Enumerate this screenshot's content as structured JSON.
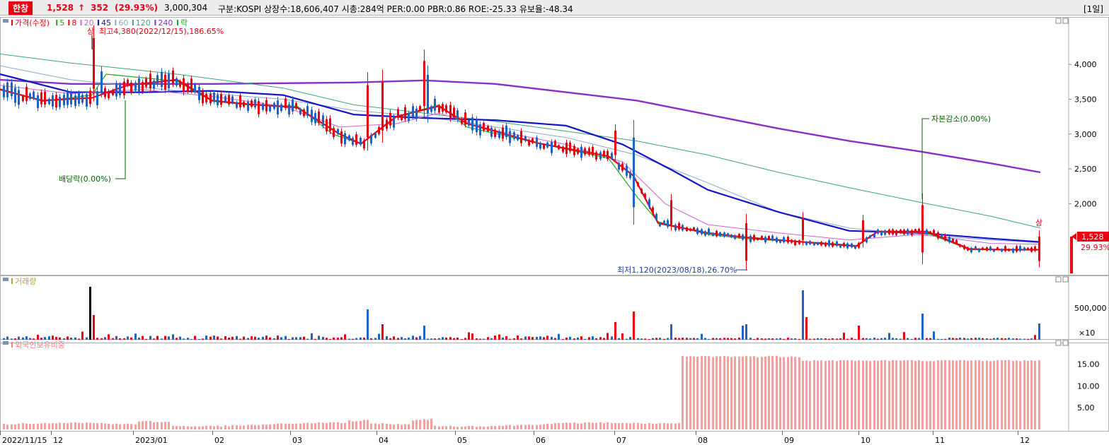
{
  "header": {
    "stock_name": "한창",
    "price": "1,528",
    "change_arrow": "↑",
    "change": "352",
    "change_pct": "(29.93%)",
    "volume": "3,000,304",
    "info": "구분:KOSPI  상장수:18,606,407  시총:284억  PER:0.00  PBR:0.86  ROE:-25.33  유보율:-48.34",
    "period": "[1일]"
  },
  "colors": {
    "up": "#e60012",
    "down": "#1f63c6",
    "ma5": "#1fa51f",
    "ma8": "#e60012",
    "ma20": "#d460d4",
    "ma45": "#1414c8",
    "ma60": "#8aa8cc",
    "ma120": "#3aa57a",
    "ma240": "#8a2fc8"
  },
  "chart_data": [
    {
      "type": "candlestick",
      "legend": [
        "가격(수정)",
        "5",
        "8",
        "20",
        "45",
        "60",
        "120",
        "240",
        "락"
      ],
      "yticks": [
        "4,000",
        "3,500",
        "3,000",
        "2,500",
        "2,000"
      ],
      "ylim": [
        1000,
        4600
      ],
      "last_price_label": "1,528",
      "last_change_label": "29.93%",
      "annotations": {
        "high": "최고4,380(2022/12/15),186.65%",
        "low": "최저1,120(2023/08/18),26.70%",
        "dividend": "배당락(0.00%)",
        "capital_reduction": "자본감소(0.00%)",
        "up_limit": "상"
      },
      "moving_averages": {
        "ma240": [
          [
            0,
            3780
          ],
          [
            100,
            3720
          ],
          [
            300,
            3720
          ],
          [
            500,
            3740
          ],
          [
            600,
            3770
          ],
          [
            700,
            3720
          ],
          [
            800,
            3600
          ],
          [
            900,
            3480
          ],
          [
            1000,
            3280
          ],
          [
            1100,
            3080
          ],
          [
            1200,
            2900
          ],
          [
            1300,
            2750
          ],
          [
            1400,
            2580
          ],
          [
            1470,
            2450
          ]
        ],
        "ma120": [
          [
            0,
            4150
          ],
          [
            100,
            4020
          ],
          [
            250,
            3860
          ],
          [
            400,
            3660
          ],
          [
            500,
            3420
          ],
          [
            600,
            3300
          ],
          [
            700,
            3180
          ],
          [
            800,
            3040
          ],
          [
            900,
            2900
          ],
          [
            1000,
            2700
          ],
          [
            1100,
            2450
          ],
          [
            1200,
            2230
          ],
          [
            1300,
            2020
          ],
          [
            1400,
            1820
          ],
          [
            1470,
            1650
          ]
        ],
        "ma60": [
          [
            0,
            3980
          ],
          [
            100,
            3780
          ],
          [
            250,
            3620
          ],
          [
            400,
            3500
          ],
          [
            500,
            3340
          ],
          [
            600,
            3250
          ],
          [
            700,
            3100
          ],
          [
            800,
            2950
          ],
          [
            900,
            2700
          ],
          [
            1000,
            2300
          ],
          [
            1100,
            1880
          ],
          [
            1200,
            1650
          ],
          [
            1300,
            1550
          ],
          [
            1400,
            1480
          ],
          [
            1470,
            1440
          ]
        ],
        "ma45": [
          [
            0,
            3860
          ],
          [
            100,
            3600
          ],
          [
            200,
            3600
          ],
          [
            300,
            3620
          ],
          [
            400,
            3560
          ],
          [
            500,
            3280
          ],
          [
            600,
            3230
          ],
          [
            700,
            3200
          ],
          [
            800,
            3120
          ],
          [
            880,
            2850
          ],
          [
            950,
            2480
          ],
          [
            1000,
            2200
          ],
          [
            1100,
            1880
          ],
          [
            1200,
            1610
          ],
          [
            1300,
            1580
          ],
          [
            1400,
            1500
          ],
          [
            1470,
            1450
          ]
        ],
        "ma20": [
          [
            0,
            3700
          ],
          [
            100,
            3580
          ],
          [
            200,
            3640
          ],
          [
            300,
            3540
          ],
          [
            400,
            3400
          ],
          [
            480,
            3100
          ],
          [
            560,
            3150
          ],
          [
            620,
            3300
          ],
          [
            700,
            3050
          ],
          [
            800,
            2850
          ],
          [
            880,
            2600
          ],
          [
            940,
            2000
          ],
          [
            1000,
            1700
          ],
          [
            1100,
            1580
          ],
          [
            1200,
            1480
          ],
          [
            1300,
            1560
          ],
          [
            1400,
            1430
          ],
          [
            1470,
            1420
          ]
        ],
        "ma8": [
          [
            0,
            3640
          ],
          [
            60,
            3480
          ],
          [
            130,
            3520
          ],
          [
            180,
            3700
          ],
          [
            250,
            3780
          ],
          [
            300,
            3480
          ],
          [
            350,
            3430
          ],
          [
            420,
            3380
          ],
          [
            480,
            3000
          ],
          [
            510,
            2860
          ],
          [
            560,
            3250
          ],
          [
            620,
            3400
          ],
          [
            660,
            3150
          ],
          [
            760,
            2870
          ],
          [
            860,
            2680
          ],
          [
            895,
            2400
          ],
          [
            930,
            1720
          ],
          [
            1000,
            1580
          ],
          [
            1050,
            1520
          ],
          [
            1100,
            1480
          ],
          [
            1160,
            1430
          ],
          [
            1210,
            1390
          ],
          [
            1240,
            1600
          ],
          [
            1310,
            1600
          ],
          [
            1370,
            1350
          ],
          [
            1420,
            1340
          ],
          [
            1470,
            1340
          ]
        ],
        "ma5": [
          [
            0,
            3650
          ],
          [
            60,
            3470
          ],
          [
            130,
            3560
          ],
          [
            150,
            3860
          ],
          [
            250,
            3760
          ],
          [
            300,
            3470
          ],
          [
            350,
            3420
          ],
          [
            420,
            3400
          ],
          [
            470,
            3000
          ],
          [
            510,
            2860
          ],
          [
            560,
            3250
          ],
          [
            620,
            3420
          ],
          [
            660,
            3100
          ],
          [
            760,
            2870
          ],
          [
            860,
            2650
          ],
          [
            900,
            2100
          ],
          [
            930,
            1740
          ],
          [
            1000,
            1560
          ],
          [
            1050,
            1500
          ],
          [
            1100,
            1470
          ],
          [
            1160,
            1440
          ],
          [
            1210,
            1400
          ],
          [
            1240,
            1600
          ],
          [
            1310,
            1580
          ],
          [
            1370,
            1340
          ],
          [
            1420,
            1340
          ],
          [
            1470,
            1340
          ]
        ]
      }
    },
    {
      "type": "bar",
      "legend": "거래량",
      "yticks": [
        "500,000",
        "×10"
      ]
    },
    {
      "type": "bar",
      "legend": "외국인보유비중",
      "yticks": [
        "15.00",
        "10.00",
        "5.00"
      ],
      "ylim": [
        0,
        19.5
      ]
    }
  ],
  "xaxis": {
    "labels": [
      {
        "x": 0,
        "text": "2022/11/15"
      },
      {
        "x": 72,
        "text": "12"
      },
      {
        "x": 188,
        "text": "2023/01"
      },
      {
        "x": 300,
        "text": "02"
      },
      {
        "x": 410,
        "text": "03"
      },
      {
        "x": 532,
        "text": "04"
      },
      {
        "x": 643,
        "text": "05"
      },
      {
        "x": 754,
        "text": "06"
      },
      {
        "x": 868,
        "text": "07"
      },
      {
        "x": 983,
        "text": "08"
      },
      {
        "x": 1105,
        "text": "09"
      },
      {
        "x": 1213,
        "text": "10"
      },
      {
        "x": 1318,
        "text": "11"
      },
      {
        "x": 1438,
        "text": "12"
      }
    ]
  }
}
